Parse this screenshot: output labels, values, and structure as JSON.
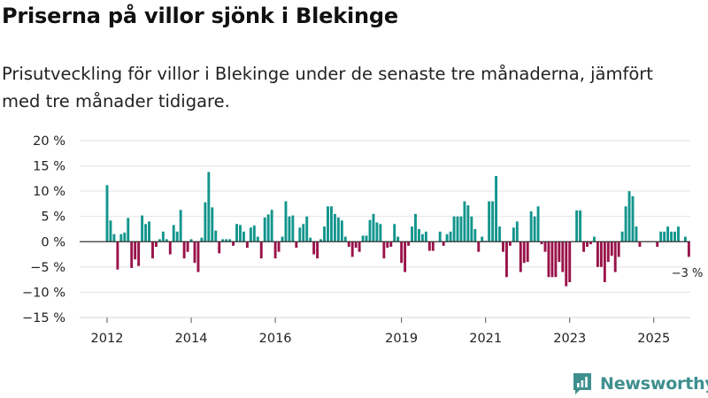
{
  "header": {
    "title": "Priserna på villor sjönk i Blekinge",
    "subtitle": "Prisutveckling för villor i Blekinge under de senaste tre månaderna, jämfört med tre månader tidigare."
  },
  "brand": {
    "name": "Newsworthy"
  },
  "colors": {
    "positive": "#12958d",
    "negative": "#99124a",
    "grid": "#e3e3e3",
    "brand": "#3e8f8f"
  },
  "chart_data": {
    "type": "bar",
    "title": "Priserna på villor sjönk i Blekinge",
    "subtitle": "Prisutveckling för villor i Blekinge under de senaste tre månaderna, jämfört med tre månader tidigare.",
    "xlabel": "",
    "ylabel": "",
    "ylim": [
      -15,
      20
    ],
    "y_ticks": [
      20,
      15,
      10,
      5,
      0,
      -5,
      -10,
      -15
    ],
    "y_tick_labels": [
      "20 %",
      "15 %",
      "10 %",
      "5 %",
      "0 %",
      "−5 %",
      "−10 %",
      "−15 %"
    ],
    "x_ticks": [
      2012,
      2014,
      2016,
      2019,
      2021,
      2023,
      2025
    ],
    "x_tick_labels": [
      "2012",
      "2014",
      "2016",
      "2019",
      "2021",
      "2023",
      "2025"
    ],
    "start": {
      "year": 2012,
      "month": 1
    },
    "frequency": "monthly",
    "grid": true,
    "end_label": "−3 %",
    "values": [
      11.2,
      4.2,
      1.5,
      -5.5,
      1.5,
      1.8,
      4.7,
      -5.2,
      -3.5,
      -4.8,
      5.2,
      3.5,
      4.0,
      -3.3,
      -1.0,
      0.5,
      2.0,
      0.5,
      -2.5,
      3.3,
      2.0,
      6.3,
      -3.3,
      -2.0,
      0.5,
      -4.2,
      -6.0,
      0.8,
      7.8,
      13.8,
      6.8,
      2.2,
      -2.3,
      0.5,
      0.5,
      0.5,
      -0.8,
      3.5,
      3.3,
      2.0,
      -1.2,
      2.8,
      3.2,
      1.0,
      -3.3,
      4.8,
      5.4,
      6.3,
      -3.3,
      -2.0,
      1.0,
      8.0,
      5.0,
      5.2,
      -1.2,
      2.8,
      3.5,
      5.0,
      0.8,
      -2.5,
      -3.3,
      0.5,
      3.0,
      7.0,
      7.0,
      5.5,
      4.8,
      4.2,
      1.0,
      -1.0,
      -3.0,
      -1.2,
      -2.0,
      1.2,
      1.2,
      4.3,
      5.5,
      3.8,
      3.5,
      -3.3,
      -1.2,
      -1.0,
      3.5,
      1.0,
      -4.2,
      -6.0,
      -0.8,
      3.0,
      5.5,
      2.5,
      1.5,
      2.0,
      -1.8,
      -1.8,
      0.0,
      2.0,
      -0.8,
      1.5,
      2.0,
      5.0,
      5.0,
      5.0,
      8.0,
      7.2,
      5.0,
      2.5,
      -2.0,
      1.0,
      0.2,
      8.0,
      8.0,
      13.0,
      3.0,
      -2.0,
      -7.0,
      -0.8,
      2.8,
      4.0,
      -6.0,
      -4.2,
      -4.0,
      6.0,
      5.0,
      7.0,
      -0.5,
      -2.0,
      -7.0,
      -7.0,
      -7.0,
      -4.0,
      -6.0,
      -8.8,
      -8.0,
      0.0,
      6.2,
      6.2,
      -2.0,
      -1.0,
      -0.5,
      1.0,
      -5.0,
      -5.0,
      -8.0,
      -4.0,
      -2.8,
      -6.0,
      -3.0,
      2.0,
      7.0,
      10.0,
      9.0,
      3.0,
      -1.0,
      0.0,
      0.0,
      0.0,
      0.0,
      -1.0,
      2.0,
      2.0,
      3.0,
      2.0,
      2.0,
      3.0,
      0.0,
      1.0,
      -3.0
    ]
  }
}
